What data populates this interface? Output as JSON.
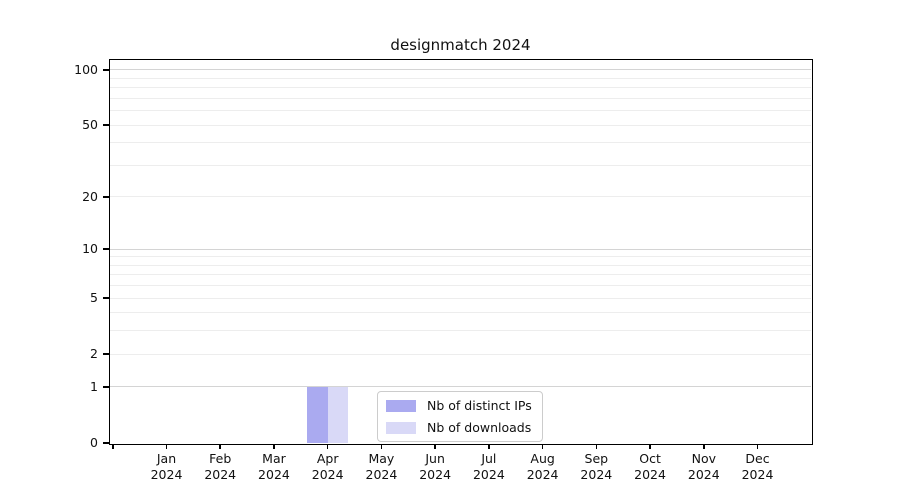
{
  "chart_data": {
    "type": "bar",
    "title": "designmatch 2024",
    "x_months": [
      "Jan",
      "Feb",
      "Mar",
      "Apr",
      "May",
      "Jun",
      "Jul",
      "Aug",
      "Sep",
      "Oct",
      "Nov",
      "Dec"
    ],
    "x_year": "2024",
    "series": [
      {
        "name": "Nb of distinct IPs",
        "color": "#aaaaf0",
        "values": [
          0,
          0,
          0,
          1,
          0,
          0,
          0,
          0,
          0,
          0,
          0,
          0
        ]
      },
      {
        "name": "Nb of downloads",
        "color": "#d9d9f7",
        "values": [
          0,
          0,
          0,
          1,
          0,
          0,
          0,
          0,
          0,
          0,
          0,
          0
        ]
      }
    ],
    "yscale": "log1p",
    "ylim": [
      0,
      113
    ],
    "ytick_values": [
      0,
      1,
      2,
      5,
      10,
      20,
      50,
      100
    ],
    "grid_major_values": [
      1,
      10,
      100
    ],
    "grid_minor_values": [
      2,
      3,
      4,
      5,
      6,
      7,
      8,
      9,
      20,
      30,
      40,
      50,
      60,
      70,
      80,
      90
    ],
    "legend_position": "inside lower-center",
    "colors": {
      "bar_distinct_ips": "#aaaaf0",
      "bar_downloads": "#d9d9f7",
      "grid_major": "#d4d4d4",
      "grid_minor": "#ededed",
      "axis": "#000000"
    }
  }
}
